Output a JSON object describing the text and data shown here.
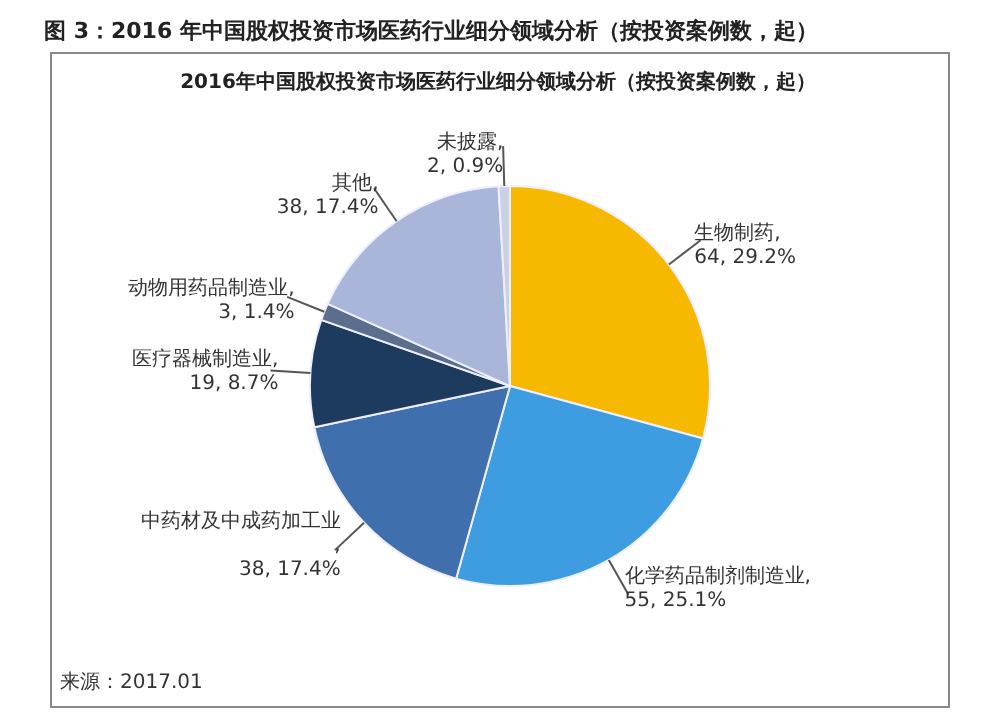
{
  "chart_data": {
    "type": "pie",
    "title": "图 3：2016 年中国股权投资市场医药行业细分领域分析（按投资案例数，起）",
    "subtitle": "2016年中国股权投资市场医药行业细分领域分析（按投资案例数，起）",
    "categories": [
      "生物制药",
      "化学药品制剂制造业",
      "中药材及中成药加工业",
      "医疗器械制造业",
      "动物用药品制造业",
      "其他",
      "未披露"
    ],
    "values": [
      64,
      55,
      38,
      19,
      3,
      38,
      2
    ],
    "value_labels": [
      ", 64, 29.2%",
      ", 55, 25.1%",
      ", 38, 17.4%",
      ", 19, 8.7%",
      ", 3, 1.4%",
      ", 38, 17.4%",
      ", 2, 0.9%"
    ],
    "colors": [
      "#f7b900",
      "#3d9de0",
      "#3f6fad",
      "#1d3a5f",
      "#5b6e8e",
      "#a9b6d9",
      "#c9d1e3"
    ],
    "annotations": [
      "来源：2017.01"
    ]
  }
}
